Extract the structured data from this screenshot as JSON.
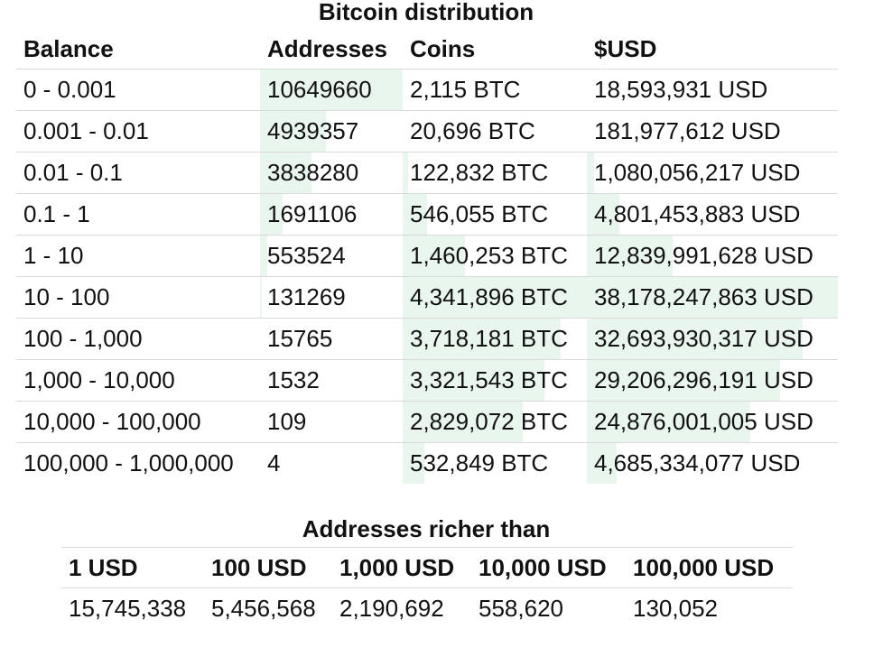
{
  "distribution": {
    "title": "Bitcoin distribution",
    "headers": [
      "Balance",
      "Addresses",
      "Coins",
      "$USD"
    ],
    "rows": [
      {
        "balance": "0 - 0.001",
        "addresses": "10649660",
        "coins": "2,115 BTC",
        "usd": "18,593,931 USD",
        "addr_pct": 100,
        "coins_pct": 0,
        "usd_pct": 0
      },
      {
        "balance": "0.001 - 0.01",
        "addresses": "4939357",
        "coins": "20,696 BTC",
        "usd": "181,977,612 USD",
        "addr_pct": 46,
        "coins_pct": 0,
        "usd_pct": 0
      },
      {
        "balance": "0.01 - 0.1",
        "addresses": "3838280",
        "coins": "122,832 BTC",
        "usd": "1,080,056,217 USD",
        "addr_pct": 36,
        "coins_pct": 3,
        "usd_pct": 3
      },
      {
        "balance": "0.1 - 1",
        "addresses": "1691106",
        "coins": "546,055 BTC",
        "usd": "4,801,453,883 USD",
        "addr_pct": 16,
        "coins_pct": 13,
        "usd_pct": 13
      },
      {
        "balance": "1 - 10",
        "addresses": "553524",
        "coins": "1,460,253 BTC",
        "usd": "12,839,991,628 USD",
        "addr_pct": 5,
        "coins_pct": 34,
        "usd_pct": 34
      },
      {
        "balance": "10 - 100",
        "addresses": "131269",
        "coins": "4,341,896 BTC",
        "usd": "38,178,247,863 USD",
        "addr_pct": 1,
        "coins_pct": 100,
        "usd_pct": 100
      },
      {
        "balance": "100 - 1,000",
        "addresses": "15765",
        "coins": "3,718,181 BTC",
        "usd": "32,693,930,317 USD",
        "addr_pct": 0,
        "coins_pct": 86,
        "usd_pct": 86
      },
      {
        "balance": "1,000 - 10,000",
        "addresses": "1532",
        "coins": "3,321,543 BTC",
        "usd": "29,206,296,191 USD",
        "addr_pct": 0,
        "coins_pct": 77,
        "usd_pct": 77
      },
      {
        "balance": "10,000 - 100,000",
        "addresses": "109",
        "coins": "2,829,072 BTC",
        "usd": "24,876,001,005 USD",
        "addr_pct": 0,
        "coins_pct": 65,
        "usd_pct": 65
      },
      {
        "balance": "100,000 - 1,000,000",
        "addresses": "4",
        "coins": "532,849 BTC",
        "usd": "4,685,334,077 USD",
        "addr_pct": 0,
        "coins_pct": 12,
        "usd_pct": 12
      }
    ]
  },
  "richer": {
    "title": "Addresses richer than",
    "headers": [
      "1 USD",
      "100 USD",
      "1,000 USD",
      "10,000 USD",
      "100,000 USD"
    ],
    "values": [
      "15,745,338",
      "5,456,568",
      "2,190,692",
      "558,620",
      "130,052"
    ]
  },
  "colors": {
    "bar": "#e9f6ee",
    "rule": "#d9d9d9"
  }
}
